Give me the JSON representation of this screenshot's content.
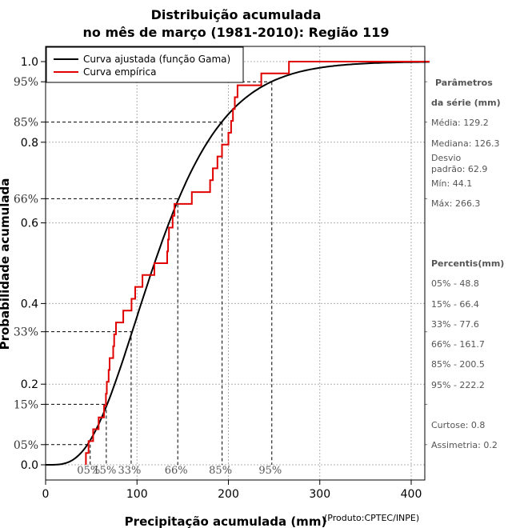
{
  "chart_data": {
    "type": "line",
    "title_line1": "Distribuição acumulada",
    "title_line2": "no mês de março (1981-2010): Região 119",
    "xlabel": "Precipitação acumulada (mm)",
    "ylabel": "Probabilidade acumulada",
    "credit": "(Produto:CPTEC/INPE)",
    "xlim": [
      0,
      420
    ],
    "ylim": [
      0,
      1
    ],
    "x_ticks": [
      0,
      100,
      200,
      300,
      400
    ],
    "y_ticks": [
      0.0,
      0.2,
      0.4,
      0.6,
      0.8,
      1.0
    ],
    "y_tick_labels": [
      "0.0",
      "0.2",
      "0.4",
      "0.6",
      "0.8",
      "1.0"
    ],
    "legend": [
      {
        "label": "Curva ajustada (função Gama)",
        "color": "#000000"
      },
      {
        "label": "Curva empírica",
        "color": "#e00000"
      }
    ],
    "gamma_fit": {
      "mean": 129.2,
      "sd": 62.9
    },
    "empirical_values": [
      44.1,
      47,
      52,
      58,
      64,
      66,
      67,
      69,
      70,
      74,
      75,
      77,
      85,
      94,
      98,
      106,
      119,
      133,
      134,
      135,
      139,
      141,
      160,
      180,
      183,
      188,
      193,
      200,
      203,
      205,
      207,
      210,
      236,
      266.3
    ],
    "percentiles": [
      {
        "prob": 0.05,
        "prob_label": "05%",
        "value": 48.8,
        "x_label": "05%"
      },
      {
        "prob": 0.15,
        "prob_label": "15%",
        "value": 66.4,
        "x_label": "15%"
      },
      {
        "prob": 0.33,
        "prob_label": "33%",
        "value": 93.6,
        "x_label": "33%"
      },
      {
        "prob": 0.66,
        "prob_label": "66%",
        "value": 144.6,
        "x_label": "66%"
      },
      {
        "prob": 0.85,
        "prob_label": "85%",
        "value": 193.1,
        "x_label": "85%"
      },
      {
        "prob": 0.95,
        "prob_label": "95%",
        "value": 247.5,
        "x_label": "95%"
      }
    ]
  },
  "side_panel": {
    "params_title_1": "Parâmetros",
    "params_title_2": "da série (mm)",
    "media": "Média: 129.2",
    "mediana": "Mediana: 126.3",
    "desvio_1": "Desvio",
    "desvio_2": "padrão: 62.9",
    "min": "Mín: 44.1",
    "max": "Máx: 266.3",
    "percentis_title": "Percentis(mm)",
    "p05": "05% - 48.8",
    "p15": "15% - 66.4",
    "p33": "33% - 77.6",
    "p66": "66% - 161.7",
    "p85": "85% - 200.5",
    "p95": "95% - 222.2",
    "curtose": "Curtose: 0.8",
    "assimetria": "Assimetria: 0.2"
  }
}
